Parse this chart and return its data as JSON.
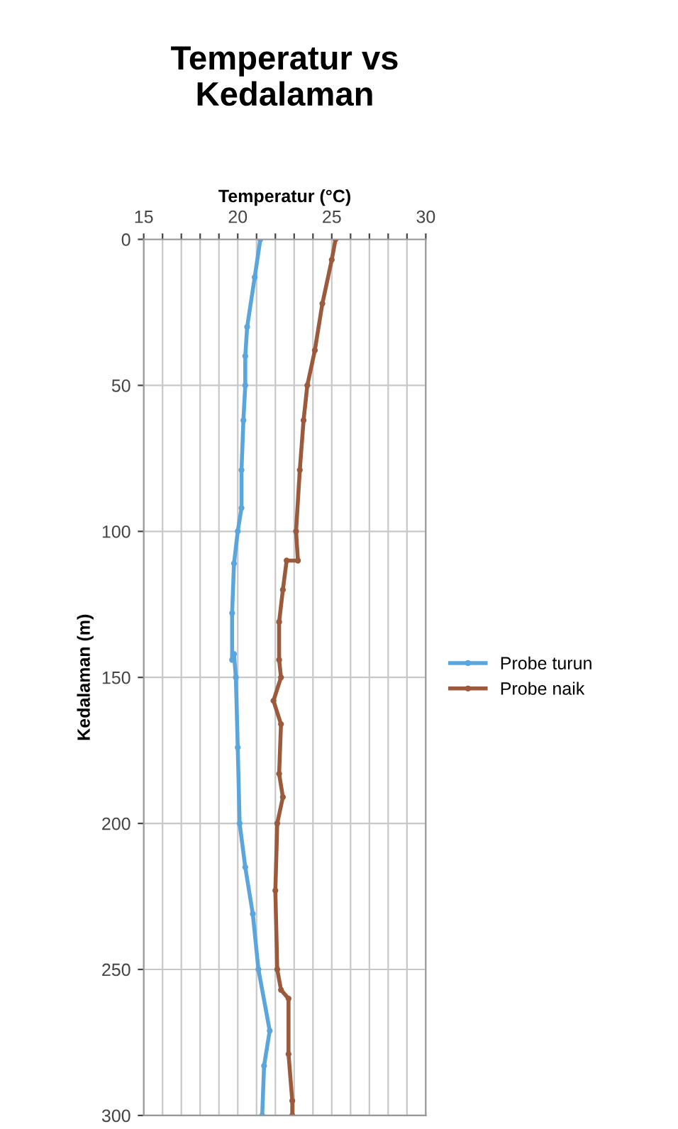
{
  "chart_data": {
    "type": "line",
    "title": "Temperatur vs\nKedalaman",
    "xlabel": "Temperatur (°C)",
    "ylabel": "Kedalaman (m)",
    "xlim": [
      15,
      30
    ],
    "xticks": [
      15,
      {
        "value": 16,
        "label": null
      },
      {
        "value": 17,
        "label": null
      },
      {
        "value": 18,
        "label": null
      },
      {
        "value": 19,
        "label": null
      },
      20,
      {
        "value": 21,
        "label": null
      },
      {
        "value": 22,
        "label": null
      },
      {
        "value": 23,
        "label": null
      },
      {
        "value": 24,
        "label": null
      },
      25,
      {
        "value": 26,
        "label": null
      },
      {
        "value": 27,
        "label": null
      },
      {
        "value": 28,
        "label": null
      },
      {
        "value": 29,
        "label": null
      },
      30
    ],
    "ylim": [
      300,
      0
    ],
    "yticks": [
      0,
      50,
      100,
      150,
      200,
      250,
      300
    ],
    "grid": true,
    "legend": "right",
    "marker": "circle",
    "line_style": "solid",
    "series": [
      {
        "name": "Probe turun",
        "color": "#5aa6dc",
        "x": [
          21.2,
          20.9,
          20.5,
          20.4,
          20.4,
          20.3,
          20.2,
          20.2,
          20.0,
          19.8,
          19.7,
          19.7,
          19.8,
          19.9,
          20.0,
          20.1,
          20.4,
          20.8,
          21.1,
          21.7,
          21.4,
          21.3
        ],
        "values": [
          0,
          13,
          30,
          40,
          50,
          62,
          79,
          92,
          100,
          111,
          128,
          144,
          142,
          150,
          174,
          200,
          215,
          231,
          250,
          271,
          283,
          300
        ]
      },
      {
        "name": "Probe naik",
        "color": "#9c5a3c",
        "x": [
          25.2,
          25.0,
          24.5,
          24.1,
          23.7,
          23.5,
          23.3,
          23.1,
          23.2,
          22.6,
          22.4,
          22.2,
          22.2,
          22.3,
          21.9,
          22.3,
          22.2,
          22.4,
          22.1,
          22.0,
          22.1,
          22.3,
          22.7,
          22.7,
          22.9,
          22.9
        ],
        "values": [
          0,
          7,
          22,
          38,
          50,
          62,
          79,
          100,
          110,
          110,
          120,
          131,
          144,
          150,
          158,
          166,
          183,
          191,
          200,
          223,
          250,
          257,
          260,
          279,
          295,
          300
        ]
      }
    ]
  }
}
